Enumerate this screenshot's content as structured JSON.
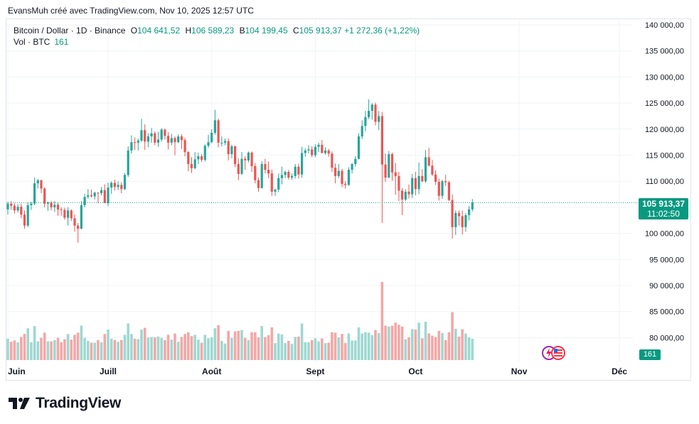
{
  "caption": "EvansMuh créé avec TradingView.com, Nov 10, 2025 12:57 UTC",
  "legend": {
    "symbol": "Bitcoin / Dollar · 1D · Binance",
    "open_label": "O",
    "open": "104 641,52",
    "high_label": "H",
    "high": "106 589,23",
    "low_label": "B",
    "low": "104 199,45",
    "close_label": "C",
    "close": "105 913,37",
    "change": "+1 272,36 (+1,22%)",
    "volume_label": "Vol · BTC",
    "volume": "161"
  },
  "price_tag": {
    "price": "105 913,37",
    "countdown": "11:02:50"
  },
  "volume_tag": "161",
  "brand": {
    "name": "TradingView",
    "logo": "tradingview-logo-icon"
  },
  "event_icons": [
    "lightning-icon",
    "us-flag-icon"
  ],
  "colors": {
    "up": "#26a69a",
    "down": "#ef5350",
    "up_vol": "#9ed8d2",
    "down_vol": "#f3a7a6",
    "price_line": "#089981",
    "grid": "#f0f3fa"
  },
  "chart_data": {
    "type": "candlestick",
    "y_axis_ticks": [
      "140 000,00",
      "135 000,00",
      "130 000,00",
      "125 000,00",
      "120 000,00",
      "115 000,00",
      "110 000,00",
      "105 000,00",
      "100 000,00",
      "95 000,00",
      "90 000,00",
      "85 000,00",
      "80 000,00"
    ],
    "ylim": [
      78000,
      141500
    ],
    "x_axis_ticks": [
      "Juin",
      "Juill",
      "Août",
      "Sept",
      "Oct",
      "Nov",
      "Déc"
    ],
    "grid": true,
    "last_price": 105913.37,
    "x_start": "2025-06-01",
    "candles": [
      [
        104600,
        106000,
        103600,
        105700
      ],
      [
        105700,
        106200,
        104500,
        105300
      ],
      [
        105300,
        105800,
        103800,
        104400
      ],
      [
        104400,
        105600,
        104000,
        105100
      ],
      [
        105100,
        105700,
        102900,
        103600
      ],
      [
        103600,
        104400,
        100900,
        101500
      ],
      [
        101500,
        106000,
        101200,
        105400
      ],
      [
        105400,
        106100,
        104500,
        105700
      ],
      [
        105700,
        110700,
        105400,
        109600
      ],
      [
        109600,
        110400,
        108600,
        110200
      ],
      [
        110200,
        110300,
        107700,
        108600
      ],
      [
        108600,
        108800,
        105000,
        105700
      ],
      [
        105700,
        106100,
        104300,
        105900
      ],
      [
        105900,
        106200,
        104400,
        105000
      ],
      [
        105000,
        106200,
        104100,
        105500
      ],
      [
        105500,
        106000,
        103400,
        104600
      ],
      [
        104600,
        105000,
        103400,
        104500
      ],
      [
        104500,
        104900,
        102600,
        103000
      ],
      [
        103000,
        105000,
        101500,
        104400
      ],
      [
        104400,
        104600,
        102400,
        102900
      ],
      [
        102900,
        103600,
        100300,
        101500
      ],
      [
        101500,
        102000,
        98200,
        100900
      ],
      [
        100900,
        106200,
        100800,
        105400
      ],
      [
        105400,
        107600,
        105000,
        107000
      ],
      [
        107000,
        108500,
        106600,
        107300
      ],
      [
        107300,
        108400,
        106900,
        107100
      ],
      [
        107100,
        108000,
        106500,
        107800
      ],
      [
        107800,
        107900,
        105800,
        107700
      ],
      [
        107700,
        108900,
        107300,
        108300
      ],
      [
        108300,
        109400,
        105900,
        105800
      ],
      [
        105800,
        109700,
        105200,
        108800
      ],
      [
        108800,
        110000,
        107600,
        109700
      ],
      [
        109700,
        110300,
        108200,
        108900
      ],
      [
        108900,
        110000,
        108300,
        109300
      ],
      [
        109300,
        109800,
        107700,
        108500
      ],
      [
        108500,
        111600,
        108300,
        111200
      ],
      [
        111200,
        116700,
        110800,
        115900
      ],
      [
        115900,
        118800,
        115300,
        117500
      ],
      [
        117500,
        118400,
        116000,
        117400
      ],
      [
        117400,
        118200,
        115900,
        117800
      ],
      [
        117800,
        122000,
        117500,
        119800
      ],
      [
        119800,
        120900,
        116000,
        117600
      ],
      [
        117600,
        119200,
        116500,
        118600
      ],
      [
        118600,
        120200,
        117400,
        119200
      ],
      [
        119200,
        119600,
        116900,
        117400
      ],
      [
        117400,
        119500,
        116600,
        118000
      ],
      [
        118000,
        120200,
        117600,
        119900
      ],
      [
        119900,
        120100,
        118000,
        118700
      ],
      [
        118700,
        119400,
        116100,
        117400
      ],
      [
        117400,
        119100,
        116900,
        118300
      ],
      [
        118300,
        118600,
        115000,
        117500
      ],
      [
        117500,
        119000,
        117300,
        118600
      ],
      [
        118600,
        119000,
        116200,
        117900
      ],
      [
        117900,
        118300,
        114800,
        115600
      ],
      [
        115600,
        115800,
        111900,
        113300
      ],
      [
        113300,
        114600,
        111600,
        112500
      ],
      [
        112500,
        115600,
        112300,
        114200
      ],
      [
        114200,
        115500,
        113300,
        114800
      ],
      [
        114800,
        115200,
        113700,
        114100
      ],
      [
        114100,
        117100,
        113800,
        116800
      ],
      [
        116800,
        118900,
        116400,
        117500
      ],
      [
        117500,
        120000,
        117300,
        119300
      ],
      [
        119300,
        123700,
        118900,
        121700
      ],
      [
        121700,
        122000,
        116500,
        117400
      ],
      [
        117400,
        118600,
        116700,
        117400
      ],
      [
        117400,
        118200,
        116900,
        117700
      ],
      [
        117700,
        118200,
        114000,
        115200
      ],
      [
        115200,
        117000,
        114400,
        116700
      ],
      [
        116700,
        116800,
        112700,
        113300
      ],
      [
        113300,
        114400,
        110200,
        111400
      ],
      [
        111400,
        115600,
        111200,
        114300
      ],
      [
        114300,
        114800,
        112200,
        114000
      ],
      [
        114000,
        115700,
        113600,
        115500
      ],
      [
        115500,
        115700,
        111800,
        112900
      ],
      [
        112900,
        113500,
        109600,
        110200
      ],
      [
        110200,
        110700,
        108000,
        108700
      ],
      [
        108700,
        113900,
        108600,
        113300
      ],
      [
        113300,
        114300,
        111500,
        112200
      ],
      [
        112200,
        113800,
        110600,
        111500
      ],
      [
        111500,
        112200,
        107200,
        108000
      ],
      [
        108000,
        108600,
        107200,
        108400
      ],
      [
        108400,
        111500,
        107900,
        110600
      ],
      [
        110600,
        112800,
        109400,
        111200
      ],
      [
        111200,
        112000,
        110600,
        111800
      ],
      [
        111800,
        112200,
        110300,
        110700
      ],
      [
        110700,
        111500,
        110300,
        111000
      ],
      [
        111000,
        113300,
        110500,
        112800
      ],
      [
        112800,
        113400,
        110500,
        111300
      ],
      [
        111300,
        116600,
        110700,
        115400
      ],
      [
        115400,
        116300,
        114700,
        115900
      ],
      [
        115900,
        116900,
        115300,
        116100
      ],
      [
        116100,
        116700,
        114600,
        115000
      ],
      [
        115000,
        117100,
        114600,
        116600
      ],
      [
        116600,
        117400,
        115600,
        117000
      ],
      [
        117000,
        117900,
        115400,
        115400
      ],
      [
        115400,
        116500,
        115100,
        115900
      ],
      [
        115900,
        116200,
        114700,
        115300
      ],
      [
        115300,
        115700,
        111800,
        112600
      ],
      [
        112600,
        113400,
        109600,
        111000
      ],
      [
        111000,
        113300,
        110600,
        112000
      ],
      [
        112000,
        112400,
        108900,
        109500
      ],
      [
        109500,
        110000,
        108600,
        109300
      ],
      [
        109300,
        112700,
        109100,
        112200
      ],
      [
        112200,
        113500,
        111500,
        113300
      ],
      [
        113300,
        114800,
        112800,
        114300
      ],
      [
        114300,
        119200,
        114200,
        118600
      ],
      [
        118600,
        121700,
        118100,
        120600
      ],
      [
        120600,
        123500,
        119600,
        122300
      ],
      [
        122300,
        125700,
        121900,
        123500
      ],
      [
        123500,
        125000,
        121800,
        124700
      ],
      [
        124700,
        125100,
        120700,
        121400
      ],
      [
        121400,
        123500,
        119800,
        122500
      ],
      [
        122500,
        123300,
        102000,
        113200
      ],
      [
        113200,
        115300,
        109900,
        110700
      ],
      [
        110700,
        115800,
        110600,
        115200
      ],
      [
        115200,
        115500,
        110100,
        111700
      ],
      [
        111700,
        113500,
        107400,
        111000
      ],
      [
        111000,
        111800,
        106200,
        108200
      ],
      [
        108200,
        108700,
        103500,
        106500
      ],
      [
        106500,
        108500,
        106200,
        108000
      ],
      [
        108000,
        109400,
        106700,
        107500
      ],
      [
        107500,
        111400,
        106800,
        110600
      ],
      [
        110600,
        111800,
        107300,
        108500
      ],
      [
        108500,
        113600,
        107500,
        111000
      ],
      [
        111000,
        112300,
        109800,
        110000
      ],
      [
        110000,
        116000,
        109700,
        114600
      ],
      [
        114600,
        116400,
        112800,
        113000
      ],
      [
        113000,
        114100,
        111000,
        111300
      ],
      [
        111300,
        112100,
        109300,
        109900
      ],
      [
        109900,
        110500,
        106300,
        107200
      ],
      [
        107200,
        110300,
        106600,
        110000
      ],
      [
        110000,
        111200,
        109100,
        109800
      ],
      [
        109800,
        110100,
        106200,
        106400
      ],
      [
        106400,
        107500,
        99000,
        101200
      ],
      [
        101200,
        104400,
        99700,
        103900
      ],
      [
        103900,
        104400,
        101500,
        103300
      ],
      [
        103300,
        104400,
        99800,
        101200
      ],
      [
        101200,
        103900,
        100300,
        103500
      ],
      [
        103500,
        105200,
        102500,
        104600
      ],
      [
        104600,
        106600,
        104200,
        105900
      ]
    ],
    "volume_max": 60000
  }
}
